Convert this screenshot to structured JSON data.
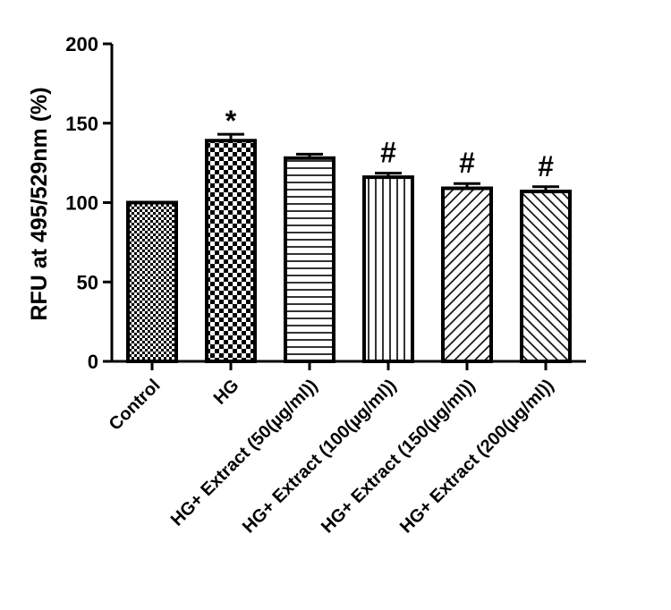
{
  "chart_data": {
    "type": "bar",
    "title": "",
    "xlabel": "",
    "ylabel": "RFU at 495/529nm (%)",
    "ylim": [
      0,
      200
    ],
    "yticks": [
      0,
      50,
      100,
      150,
      200
    ],
    "categories": [
      "Control",
      "HG",
      "HG+ Extract (50(µg/ml))",
      "HG+ Extract (100(µg/ml))",
      "HG+ Extract (150(µg/ml))",
      "HG+ Extract (200(µg/ml))"
    ],
    "values": [
      100,
      139,
      128,
      116,
      109,
      107
    ],
    "errors": [
      0,
      4,
      2.5,
      2.5,
      3,
      3
    ],
    "annotations": [
      "",
      "*",
      "",
      "#",
      "#",
      "#"
    ],
    "fill_patterns": [
      "fine-checker",
      "checker",
      "horizontal-lines",
      "vertical-lines",
      "diagonal-up",
      "diagonal-down"
    ],
    "grid": false,
    "legend": "none",
    "colors": {
      "stroke": "#000000",
      "fill": "#ffffff"
    }
  }
}
